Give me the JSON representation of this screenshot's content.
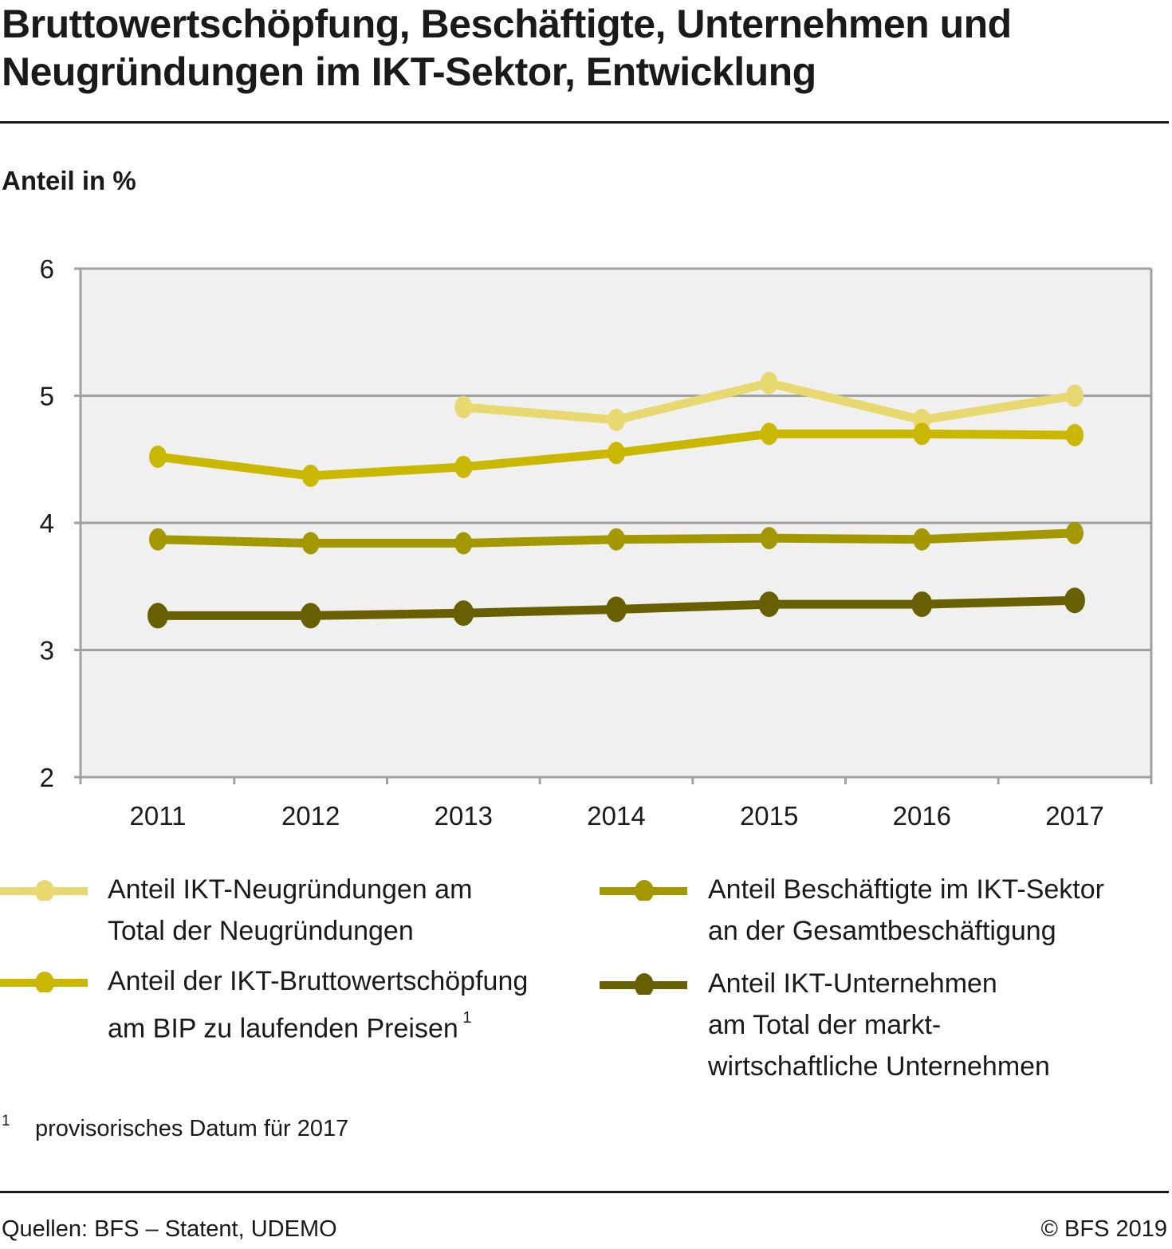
{
  "header": {
    "title_line1": "Bruttowertschöpfung, Beschäftigte, Unternehmen und",
    "title_line2": "Neugründungen im IKT-Sektor, Entwicklung",
    "unit_label": "Anteil in %"
  },
  "colors": {
    "plot_background": "#f0f0f0",
    "grid": "#a0a0a0",
    "text": "#1a1a1a"
  },
  "chart_data": {
    "type": "line",
    "title": "Bruttowertschöpfung, Beschäftigte, Unternehmen und Neugründungen im IKT-Sektor, Entwicklung",
    "xlabel": "",
    "ylabel": "Anteil in %",
    "x": [
      "2011",
      "2012",
      "2013",
      "2014",
      "2015",
      "2016",
      "2017"
    ],
    "ylim": [
      2,
      6
    ],
    "yticks": [
      "2",
      "3",
      "4",
      "5",
      "6"
    ],
    "grid": true,
    "legend_position": "bottom",
    "series": [
      {
        "name": "Anteil IKT-Neugründungen am Total der Neugründungen",
        "legend_lines": [
          "Anteil IKT-Neugründungen am",
          "Total der Neugründungen"
        ],
        "legend_sup": "",
        "color": "#e8d870",
        "values": [
          null,
          null,
          4.91,
          4.81,
          5.1,
          4.81,
          5.0
        ]
      },
      {
        "name": "Anteil der IKT-Bruttowertschöpfung am BIP zu laufenden Preisen",
        "legend_lines": [
          "Anteil der IKT-Bruttowertschöpfung",
          "am BIP zu laufenden Preisen"
        ],
        "legend_sup": "1",
        "color": "#c9b700",
        "values": [
          4.52,
          4.37,
          4.44,
          4.55,
          4.7,
          4.7,
          4.69
        ]
      },
      {
        "name": "Anteil Beschäftigte im IKT-Sektor an der Gesamtbeschäftigung",
        "legend_lines": [
          "Anteil Beschäftigte im IKT-Sektor",
          "an der Gesamtbeschäftigung"
        ],
        "legend_sup": "",
        "color": "#a39800",
        "values": [
          3.87,
          3.84,
          3.84,
          3.87,
          3.88,
          3.87,
          3.92
        ]
      },
      {
        "name": "Anteil IKT-Unternehmen am Total der marktwirtschaftliche Unternehmen",
        "legend_lines": [
          "Anteil IKT-Unternehmen",
          "am Total der markt-",
          "wirtschaftliche Unternehmen"
        ],
        "legend_sup": "",
        "color": "#686000",
        "values": [
          3.27,
          3.27,
          3.29,
          3.32,
          3.36,
          3.36,
          3.39
        ]
      }
    ]
  },
  "footnote": {
    "mark": "1",
    "text": "provisorisches Datum für 2017"
  },
  "footer": {
    "source": "Quellen: BFS – Statent, UDEMO",
    "copyright": "© BFS 2019"
  }
}
